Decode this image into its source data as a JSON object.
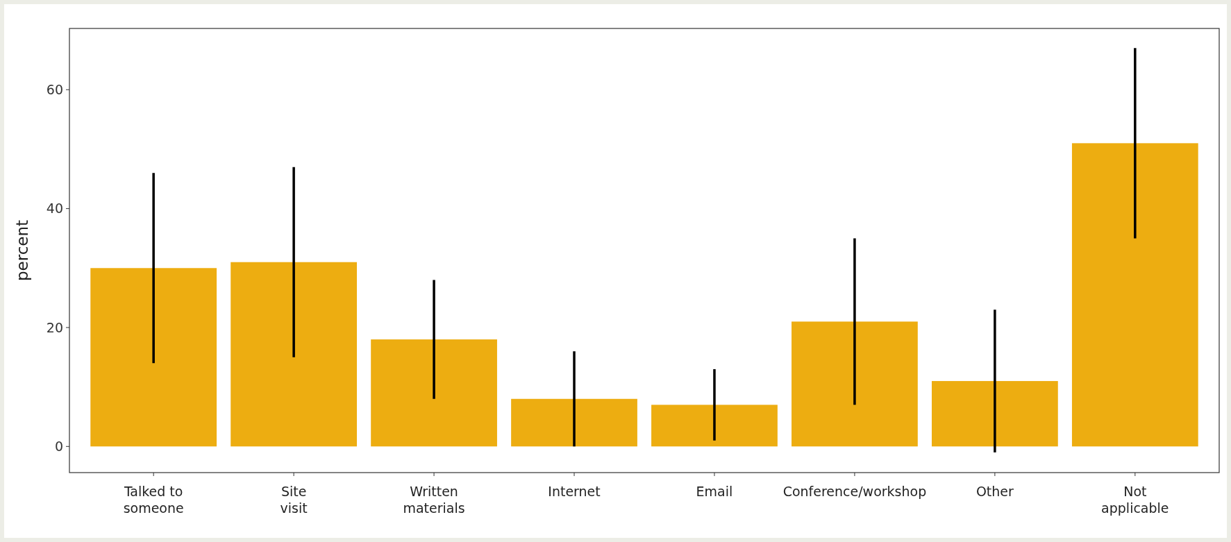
{
  "chart_data": {
    "type": "bar",
    "ylabel": "percent",
    "categories": [
      "Talked to\nsomeone",
      "Site\nvisit",
      "Written\nmaterials",
      "Internet",
      "Email",
      "Conference/workshop",
      "Other",
      "Not\napplicable"
    ],
    "values": [
      30,
      31,
      18,
      8,
      7,
      21,
      11,
      51
    ],
    "errors": [
      [
        14,
        46
      ],
      [
        15,
        47
      ],
      [
        8,
        28
      ],
      [
        0,
        16
      ],
      [
        1,
        13
      ],
      [
        7,
        35
      ],
      [
        -1,
        23
      ],
      [
        35,
        67
      ]
    ],
    "color": "#edad11",
    "ylim": [
      -4.4,
      70.3
    ],
    "yticks": [
      0,
      20,
      40,
      60
    ],
    "grid": false
  }
}
